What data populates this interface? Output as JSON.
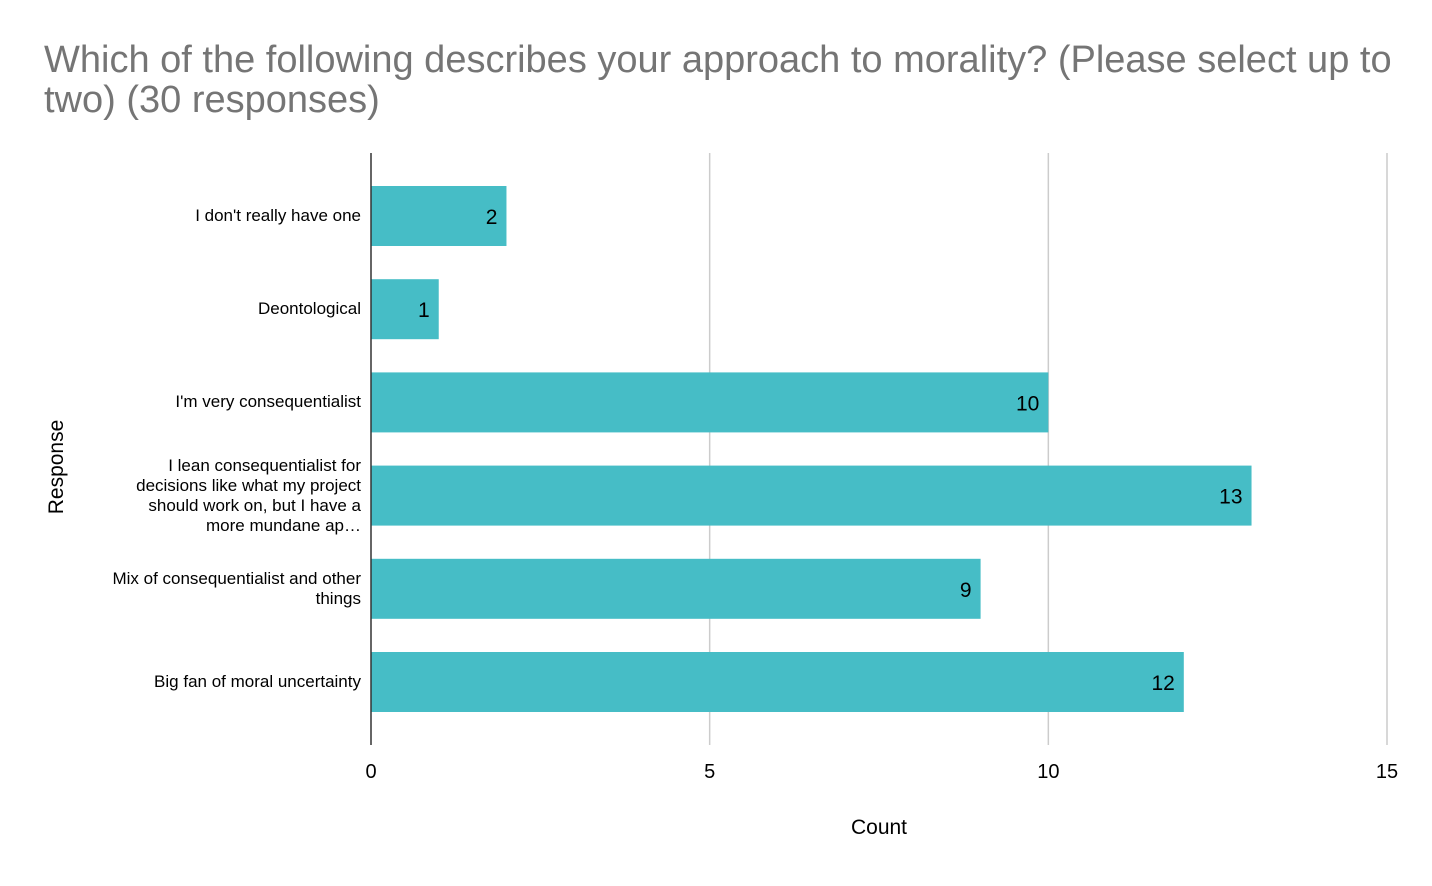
{
  "chart_data": {
    "type": "bar",
    "orientation": "horizontal",
    "title": "Which of the following describes your approach to morality? (Please select up to two) (30 responses)",
    "xlabel": "Count",
    "ylabel": "Response",
    "categories": [
      "I don't really have one",
      "Deontological",
      "I'm very consequentialist",
      "I lean consequentialist for decisions like what my project should work on, but I have a more mundane ap…",
      "Mix of consequentialist and other things",
      "Big fan of moral uncertainty"
    ],
    "values": [
      2,
      1,
      10,
      13,
      9,
      12
    ],
    "xlim": [
      0,
      15
    ],
    "xticks": [
      0,
      5,
      10,
      15
    ],
    "grid": "vertical",
    "legend": "none",
    "bar_color": "#46bdc6",
    "data_labels": true
  }
}
